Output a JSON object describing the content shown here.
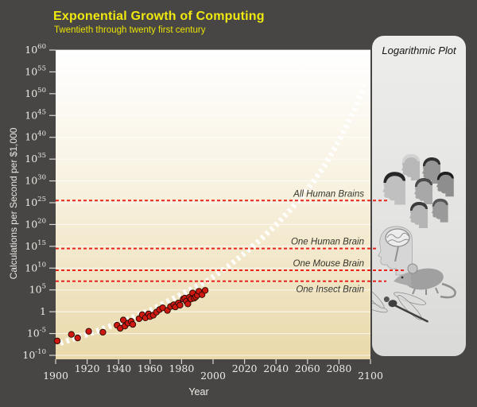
{
  "window": {
    "background": "#484644"
  },
  "header": {
    "title": "Exponential Growth of Computing",
    "subtitle": "Twentieth through twenty first century",
    "title_color": "#f0e90f"
  },
  "side_panel": {
    "label": "Logarithmic Plot",
    "icons": [
      {
        "name": "crowd-of-human-heads",
        "represents": "All Human Brains"
      },
      {
        "name": "human-head-with-brain",
        "represents": "One Human Brain"
      },
      {
        "name": "mouse",
        "represents": "One Mouse Brain"
      },
      {
        "name": "dragonfly",
        "represents": "One Insect Brain"
      }
    ]
  },
  "chart_data": {
    "type": "scatter",
    "title": "Exponential Growth of Computing",
    "xlabel": "Year",
    "ylabel": "Calculations per Second per $1,000",
    "scale": "log-y",
    "grid": true,
    "xlim": [
      1900,
      2100
    ],
    "ylim_exponents": [
      -10,
      60
    ],
    "x_ticks": [
      1900,
      1920,
      1940,
      1960,
      1980,
      2000,
      2020,
      2040,
      2060,
      2080,
      2100
    ],
    "y_ticks_exponents": [
      60,
      55,
      50,
      45,
      40,
      35,
      30,
      25,
      20,
      15,
      10,
      5,
      0,
      -5,
      -10
    ],
    "background_gradient": [
      "#ffffff",
      "#f8f1e0",
      "#e9d9aa"
    ],
    "point_color": "#cf1910",
    "point_edge_color": "#2e0a05",
    "trend_color": "#ffffff",
    "threshold_color": "#e8241c",
    "thresholds": [
      {
        "label": "All Human Brains",
        "exponent": 25.5,
        "label_side": "above"
      },
      {
        "label": "One Human Brain",
        "exponent": 14.5,
        "label_side": "above"
      },
      {
        "label": "One Mouse Brain",
        "exponent": 9.5,
        "label_side": "above"
      },
      {
        "label": "One Insect Brain",
        "exponent": 7.0,
        "label_side": "below"
      }
    ],
    "trend": {
      "name": "exponential-growth-trend",
      "points_year_exponent": [
        [
          1903,
          -7.2
        ],
        [
          1920,
          -5.2
        ],
        [
          1940,
          -2.6
        ],
        [
          1960,
          0.3
        ],
        [
          1980,
          4.0
        ],
        [
          1997,
          7.2
        ],
        [
          2010,
          10.5
        ],
        [
          2020,
          13.4
        ],
        [
          2030,
          16.5
        ],
        [
          2040,
          19.9
        ],
        [
          2050,
          23.7
        ],
        [
          2060,
          28.0
        ],
        [
          2070,
          33.0
        ],
        [
          2080,
          39.2
        ],
        [
          2090,
          46.5
        ],
        [
          2097,
          53.0
        ]
      ]
    },
    "points_year_exponent": [
      [
        1901,
        -6.7
      ],
      [
        1910,
        -5.2
      ],
      [
        1914,
        -6.0
      ],
      [
        1921,
        -4.5
      ],
      [
        1930,
        -4.7
      ],
      [
        1939,
        -3.1
      ],
      [
        1941,
        -3.8
      ],
      [
        1943,
        -1.9
      ],
      [
        1944,
        -3.3
      ],
      [
        1946,
        -2.6
      ],
      [
        1948,
        -2.2
      ],
      [
        1949,
        -2.9
      ],
      [
        1953,
        -1.6
      ],
      [
        1955,
        -0.7
      ],
      [
        1957,
        -1.4
      ],
      [
        1959,
        -0.5
      ],
      [
        1960,
        -1.1
      ],
      [
        1962,
        -0.8
      ],
      [
        1964,
        -0.1
      ],
      [
        1966,
        0.5
      ],
      [
        1968,
        0.9
      ],
      [
        1971,
        0.3
      ],
      [
        1973,
        1.2
      ],
      [
        1975,
        1.6
      ],
      [
        1976,
        1.1
      ],
      [
        1978,
        2.0
      ],
      [
        1979,
        1.5
      ],
      [
        1981,
        2.9
      ],
      [
        1982,
        3.1
      ],
      [
        1983,
        2.4
      ],
      [
        1984,
        1.8
      ],
      [
        1985,
        3.3
      ],
      [
        1986,
        2.9
      ],
      [
        1987,
        4.3
      ],
      [
        1988,
        3.1
      ],
      [
        1989,
        3.4
      ],
      [
        1990,
        3.8
      ],
      [
        1991,
        4.7
      ],
      [
        1993,
        3.9
      ],
      [
        1995,
        4.9
      ]
    ]
  }
}
